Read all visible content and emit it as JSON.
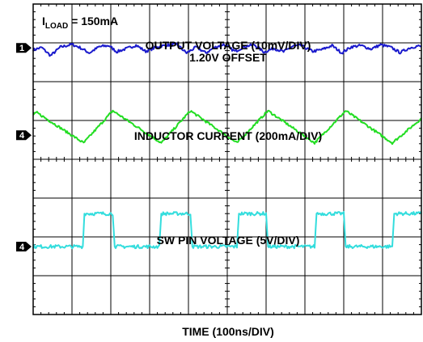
{
  "chart_data": {
    "type": "line",
    "title": "",
    "xlabel": "TIME (100ns/DIV)",
    "ylabel": "",
    "divisions": {
      "x": 10,
      "y": 8
    },
    "grid": true,
    "x_unit": "div",
    "xlim": [
      0,
      10
    ],
    "ylim": [
      0,
      8
    ],
    "load_label": {
      "prefix": "I",
      "subscript": "LOAD",
      "suffix": " = 150mA"
    },
    "channel_markers": [
      {
        "label": "1",
        "level_div": 6.87
      },
      {
        "label": "4",
        "level_div": 4.62
      },
      {
        "label": "4",
        "level_div": 1.75
      }
    ],
    "annotations": [
      {
        "text": "OUTPUT VOLTAGE (10mV/DIV)"
      },
      {
        "text": "1.20V OFFSET"
      },
      {
        "text": "INDUCTOR CURRENT (200mA/DIV)"
      },
      {
        "text": "SW PIN VOLTAGE (5V/DIV)"
      }
    ],
    "series": [
      {
        "trace": "output-voltage",
        "color": "#1a1acc",
        "x": [
          0,
          0.22,
          0.45,
          0.7,
          1.0,
          1.2,
          1.45,
          1.7,
          1.95,
          2.15,
          2.4,
          2.65,
          2.9,
          3.2,
          3.45,
          3.7,
          3.95,
          4.2,
          4.45,
          4.65,
          4.9,
          5.2,
          5.45,
          5.7,
          5.95,
          6.2,
          6.45,
          6.7,
          6.9,
          7.2,
          7.45,
          7.7,
          7.95,
          8.2,
          8.45,
          8.7,
          8.95,
          9.2,
          9.45,
          9.7,
          9.9,
          10.0
        ],
        "y": [
          6.82,
          6.88,
          6.67,
          6.89,
          6.96,
          6.88,
          6.74,
          6.9,
          6.93,
          6.77,
          6.85,
          6.94,
          6.78,
          6.9,
          6.94,
          6.96,
          6.74,
          6.89,
          6.74,
          6.87,
          6.96,
          6.78,
          6.91,
          6.95,
          6.76,
          6.86,
          6.77,
          6.92,
          6.93,
          6.78,
          6.83,
          6.93,
          6.74,
          6.9,
          6.93,
          6.84,
          6.95,
          6.89,
          6.75,
          6.87,
          6.92,
          6.9
        ]
      },
      {
        "trace": "inductor-current",
        "color": "#22dd22",
        "x": [
          0.0,
          0.1,
          1.3,
          2.05,
          3.3,
          4.05,
          5.25,
          6.05,
          7.25,
          8.05,
          9.25,
          10.0
        ],
        "y": [
          5.15,
          5.2,
          4.42,
          5.25,
          4.42,
          5.25,
          4.42,
          5.25,
          4.42,
          5.25,
          4.42,
          5.05
        ]
      },
      {
        "trace": "sw-pin-voltage",
        "color": "#33dddd",
        "x": [
          0.0,
          1.28,
          1.32,
          2.05,
          2.1,
          3.25,
          3.3,
          4.05,
          4.1,
          5.25,
          5.3,
          6.0,
          6.05,
          7.25,
          7.3,
          8.0,
          8.05,
          9.25,
          9.3,
          10.0
        ],
        "y": [
          1.75,
          1.75,
          2.6,
          2.6,
          1.75,
          1.75,
          2.6,
          2.6,
          1.75,
          1.75,
          2.6,
          2.6,
          1.75,
          1.75,
          2.6,
          2.6,
          1.75,
          1.75,
          2.6,
          2.6
        ]
      }
    ]
  }
}
